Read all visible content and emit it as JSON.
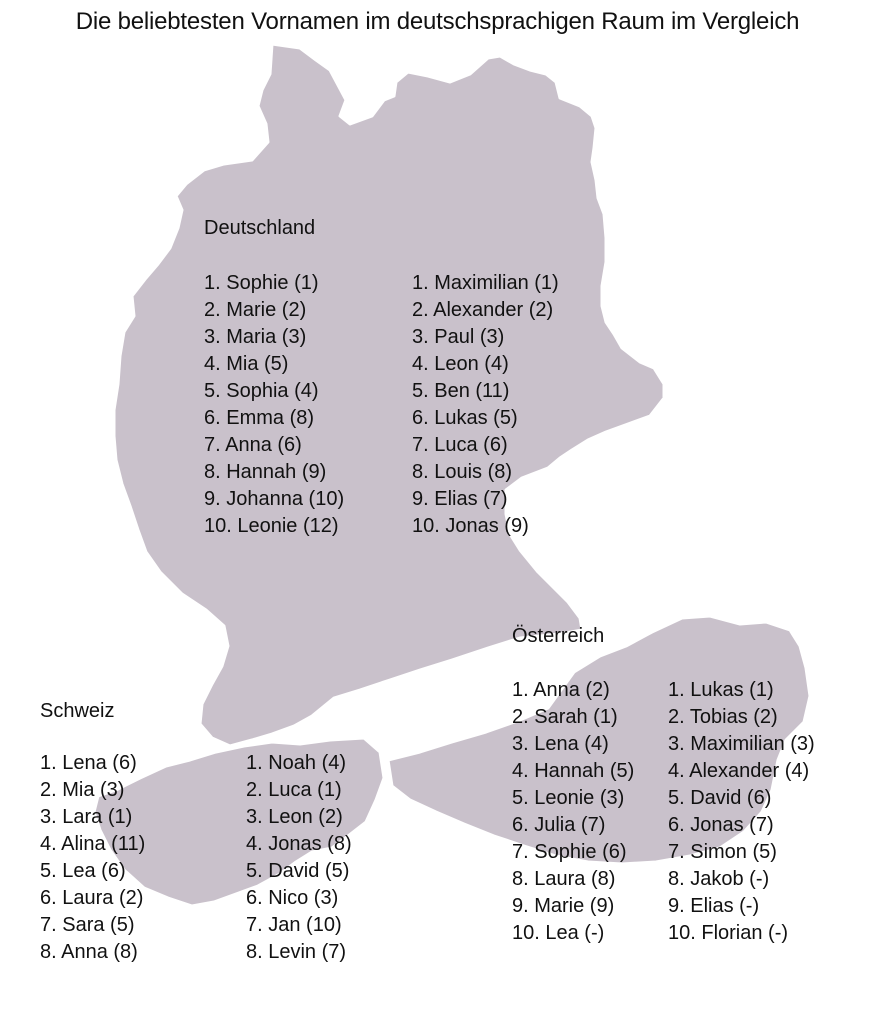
{
  "title": "Die beliebtesten Vornamen im deutschsprachigen Raum im Vergleich",
  "colors": {
    "land": "#c9c1cb",
    "border": "#ffffff",
    "text": "#111111",
    "background": "#ffffff"
  },
  "countries": {
    "germany": {
      "label": "Deutschland",
      "girls": [
        "1. Sophie (1)",
        "2. Marie (2)",
        "3. Maria (3)",
        "4. Mia (5)",
        "5. Sophia (4)",
        "6. Emma (8)",
        "7. Anna (6)",
        "8. Hannah (9)",
        "9. Johanna (10)",
        "10. Leonie (12)"
      ],
      "boys": [
        "1. Maximilian (1)",
        "2. Alexander (2)",
        "3. Paul (3)",
        "4. Leon (4)",
        "5. Ben (11)",
        "6. Lukas (5)",
        "7. Luca (6)",
        "8. Louis (8)",
        "9. Elias (7)",
        "10. Jonas (9)"
      ]
    },
    "austria": {
      "label": "Österreich",
      "girls": [
        "1. Anna (2)",
        "2. Sarah (1)",
        "3. Lena (4)",
        "4. Hannah (5)",
        "5. Leonie (3)",
        "6. Julia (7)",
        "7. Sophie (6)",
        "8. Laura (8)",
        "9. Marie (9)",
        "10. Lea (-)"
      ],
      "boys": [
        "1. Lukas (1)",
        "2. Tobias (2)",
        "3. Maximilian (3)",
        "4. Alexander (4)",
        "5. David (6)",
        "6. Jonas (7)",
        "7. Simon (5)",
        "8. Jakob (-)",
        "9. Elias (-)",
        "10. Florian (-)"
      ]
    },
    "switzerland": {
      "label": "Schweiz",
      "girls": [
        "1. Lena (6)",
        "2. Mia (3)",
        "3. Lara (1)",
        "4. Alina (11)",
        "5. Lea (6)",
        "6. Laura (2)",
        "7. Sara (5)",
        "8. Anna (8)"
      ],
      "boys": [
        "1. Noah (4)",
        "2. Luca (1)",
        "3. Leon (2)",
        "4. Jonas (8)",
        "5. David (5)",
        "6. Nico (3)",
        "7. Jan (10)",
        "8. Levin (7)"
      ]
    }
  }
}
